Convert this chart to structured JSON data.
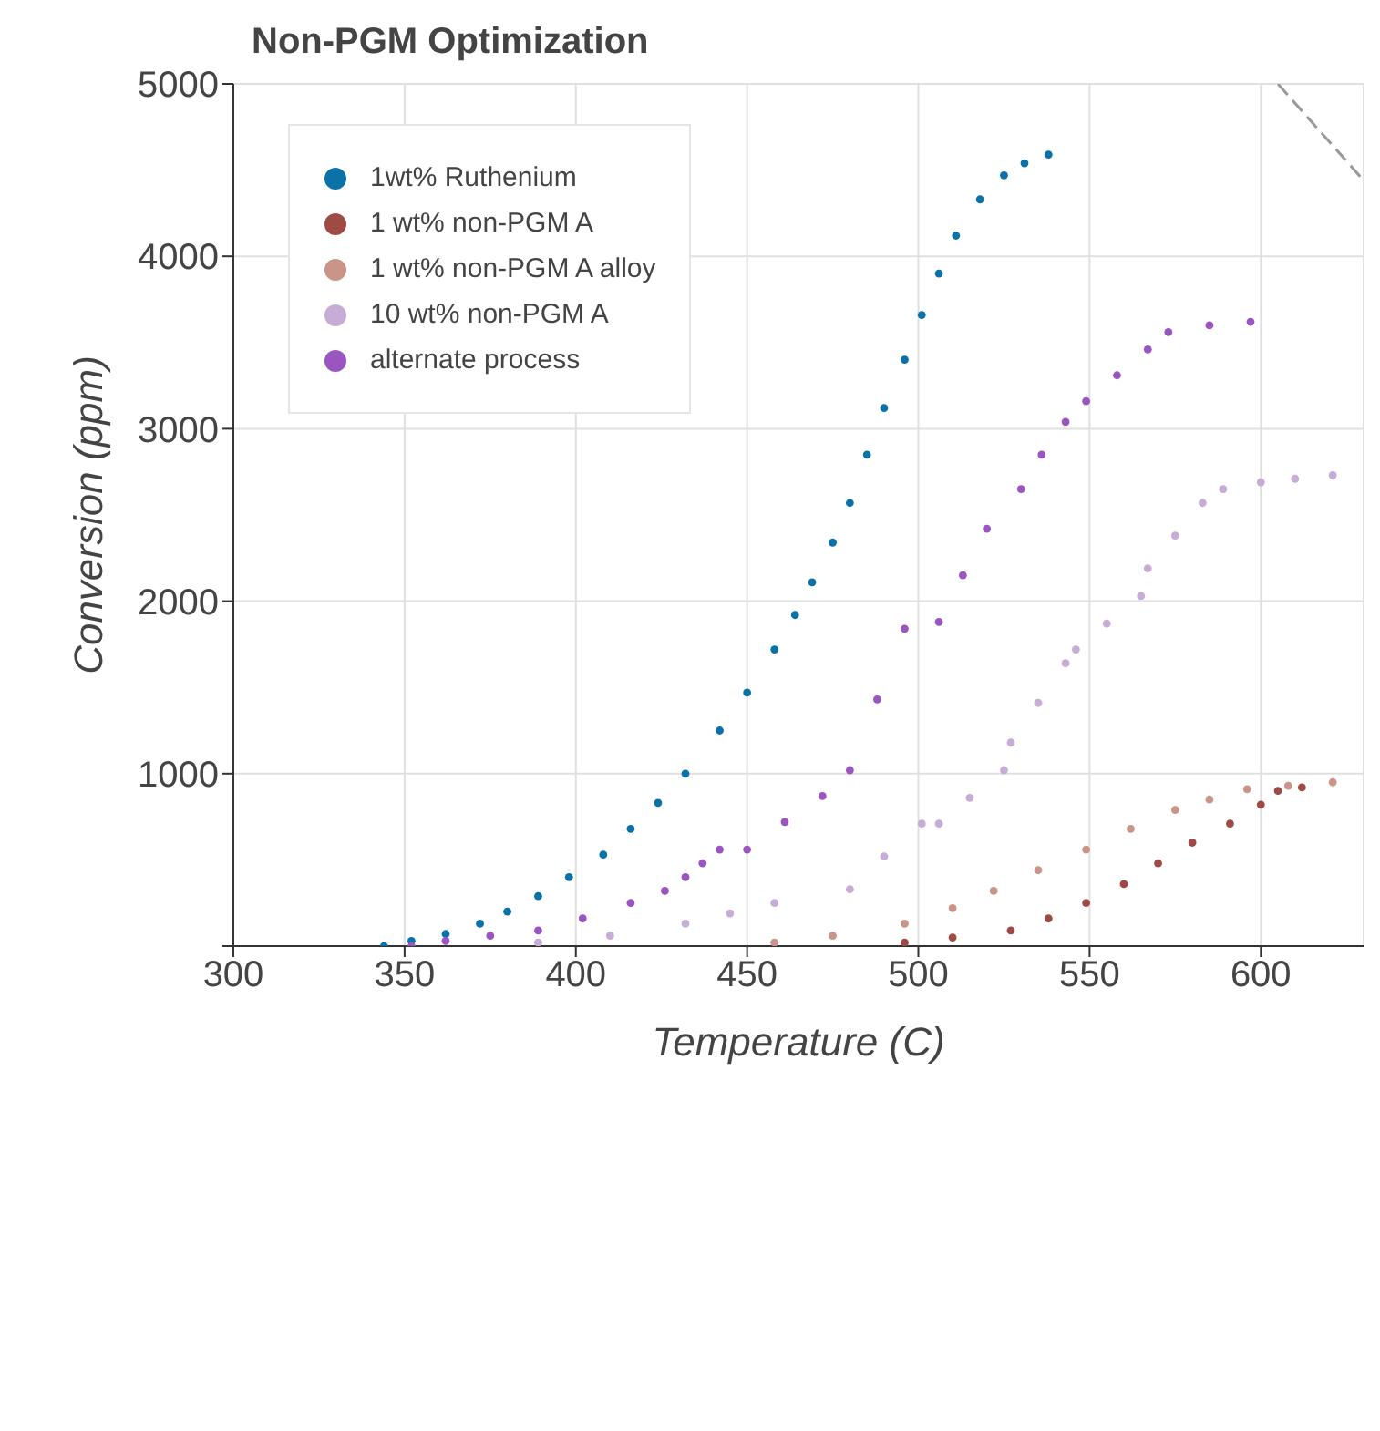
{
  "chart_data": {
    "type": "scatter",
    "title": "Non-PGM Optimization",
    "xlabel": "Temperature (C)",
    "ylabel": "Conversion (ppm)",
    "xlim": [
      300,
      630
    ],
    "xticks": [
      300,
      350,
      400,
      450,
      500,
      550,
      600
    ],
    "ylim": [
      0,
      5000
    ],
    "yticks": [
      {
        "value": 0,
        "label": null
      },
      1000,
      2000,
      3000,
      4000,
      5000
    ],
    "grid": true,
    "legend": "top left",
    "marker": "circle",
    "series": [
      {
        "name": "1wt% Ruthenium",
        "color": "#0b72a8",
        "x": [
          344,
          352,
          362,
          372,
          380,
          389,
          398,
          408,
          416,
          424,
          432,
          442,
          450,
          458,
          464,
          469,
          475,
          480,
          485,
          490,
          496,
          501,
          506,
          511,
          518,
          525,
          531,
          538
        ],
        "values": [
          0,
          30,
          70,
          130,
          200,
          290,
          400,
          530,
          680,
          830,
          1000,
          1250,
          1470,
          1720,
          1920,
          2110,
          2340,
          2570,
          2850,
          3120,
          3400,
          3660,
          3900,
          4120,
          4330,
          4470,
          4540,
          4590
        ]
      },
      {
        "name": "1 wt% non-PGM A",
        "color": "#9e4a45",
        "x": [
          496,
          510,
          527,
          538,
          549,
          560,
          570,
          580,
          591,
          600,
          605,
          612
        ],
        "values": [
          20,
          50,
          90,
          160,
          250,
          360,
          480,
          600,
          710,
          820,
          900,
          920
        ]
      },
      {
        "name": "1 wt% non-PGM A alloy",
        "color": "#c9948a",
        "x": [
          458,
          475,
          496,
          510,
          522,
          535,
          549,
          562,
          575,
          585,
          596,
          608,
          621
        ],
        "values": [
          20,
          60,
          130,
          220,
          320,
          440,
          560,
          680,
          790,
          850,
          910,
          930,
          950
        ]
      },
      {
        "name": "10 wt% non-PGM A",
        "color": "#c7acd6",
        "x": [
          389,
          410,
          432,
          445,
          458,
          480,
          490,
          501,
          506,
          515,
          525,
          527,
          535,
          543,
          546,
          555,
          565,
          567,
          575,
          583,
          589,
          600,
          610,
          621
        ],
        "values": [
          20,
          60,
          130,
          190,
          250,
          330,
          520,
          710,
          710,
          860,
          1020,
          1180,
          1410,
          1640,
          1720,
          1870,
          2030,
          2190,
          2380,
          2570,
          2650,
          2690,
          2710,
          2730
        ]
      },
      {
        "name": "alternate process",
        "color": "#9b55c0",
        "x": [
          352,
          362,
          375,
          389,
          402,
          416,
          426,
          432,
          437,
          442,
          450,
          461,
          472,
          480,
          488,
          496,
          506,
          513,
          520,
          530,
          536,
          543,
          549,
          558,
          567,
          573,
          585,
          597
        ],
        "values": [
          0,
          30,
          60,
          90,
          160,
          250,
          320,
          400,
          480,
          560,
          560,
          720,
          870,
          1020,
          1430,
          1840,
          1880,
          2150,
          2420,
          2650,
          2850,
          3040,
          3160,
          3310,
          3460,
          3560,
          3600,
          3620
        ]
      },
      {
        "type": "line",
        "color": "#999999",
        "line_style": "dashed",
        "marker": "none",
        "x": [
          605,
          630
        ],
        "values": [
          5000,
          4440
        ]
      }
    ]
  }
}
